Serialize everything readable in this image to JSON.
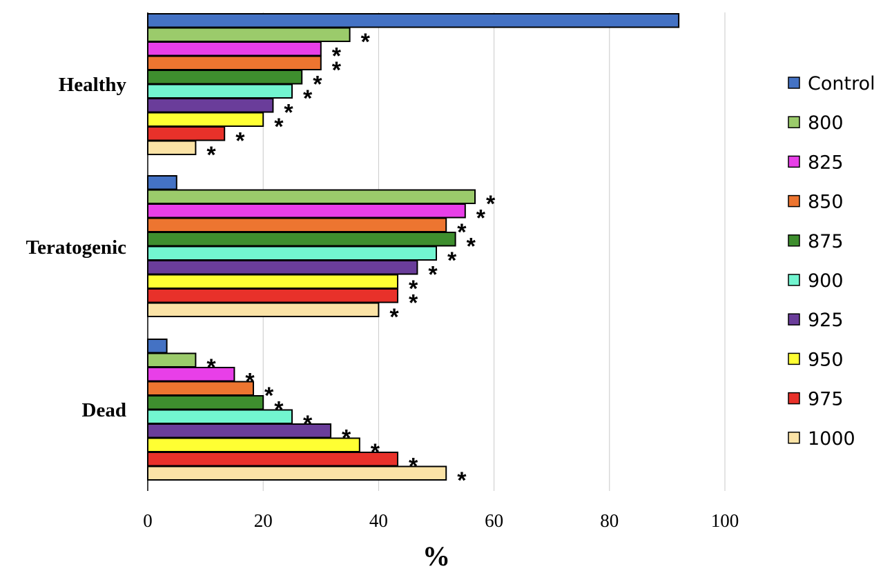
{
  "chart_data": {
    "type": "bar",
    "orientation": "horizontal",
    "categories": [
      "Healthy",
      "Teratogenic",
      "Dead"
    ],
    "series": [
      {
        "name": "Control",
        "color": "#4472C4",
        "values": [
          92,
          5,
          3.3
        ],
        "significant": [
          false,
          false,
          false
        ]
      },
      {
        "name": "800",
        "color": "#9BCB6B",
        "values": [
          35,
          56.7,
          8.3
        ],
        "significant": [
          true,
          true,
          true
        ]
      },
      {
        "name": "825",
        "color": "#E83FE8",
        "values": [
          30,
          55,
          15
        ],
        "significant": [
          true,
          true,
          true
        ]
      },
      {
        "name": "850",
        "color": "#ED7530",
        "values": [
          30,
          51.7,
          18.3
        ],
        "significant": [
          true,
          true,
          true
        ]
      },
      {
        "name": "875",
        "color": "#3E8E2E",
        "values": [
          26.7,
          53.3,
          20
        ],
        "significant": [
          true,
          true,
          true
        ]
      },
      {
        "name": "900",
        "color": "#72F5D0",
        "values": [
          25,
          50,
          25
        ],
        "significant": [
          true,
          true,
          true
        ]
      },
      {
        "name": "925",
        "color": "#6A3D9A",
        "values": [
          21.7,
          46.7,
          31.7
        ],
        "significant": [
          true,
          true,
          true
        ]
      },
      {
        "name": "950",
        "color": "#FFFF33",
        "values": [
          20,
          43.3,
          36.7
        ],
        "significant": [
          true,
          true,
          true
        ]
      },
      {
        "name": "975",
        "color": "#E8312A",
        "values": [
          13.3,
          43.3,
          43.3
        ],
        "significant": [
          true,
          true,
          true
        ]
      },
      {
        "name": "1000",
        "color": "#FBE3A6",
        "values": [
          8.3,
          40,
          51.7
        ],
        "significant": [
          true,
          true,
          true
        ]
      }
    ],
    "significance_marker": "*",
    "xlabel": "%",
    "ylabel": "",
    "xlim": [
      0,
      100
    ],
    "xticks": [
      "0",
      "20",
      "40",
      "60",
      "80",
      "100"
    ],
    "grid": "vertical",
    "legend_position": "right"
  }
}
